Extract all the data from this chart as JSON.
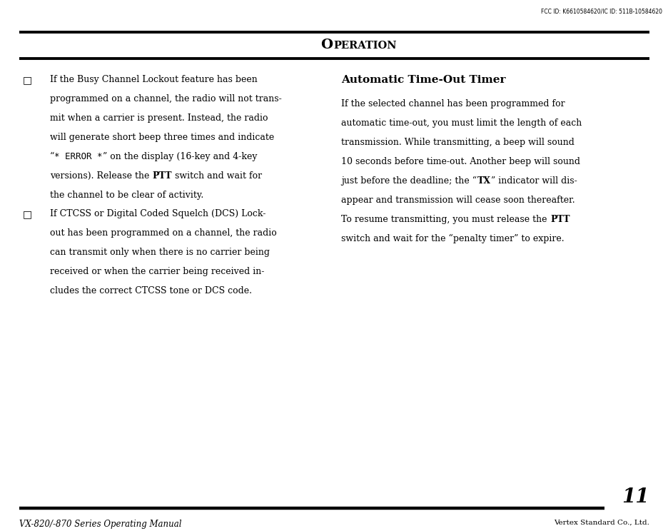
{
  "bg_color": "#ffffff",
  "text_color": "#000000",
  "top_fcc_text": "FCC ID: K6610584620/IC ID: 511B-10584620",
  "section_header": "Automatic Time-Out Timer",
  "left_bullet1_lines": [
    "If the Busy Channel Lockout feature has been",
    "programmed on a channel, the radio will not trans-",
    "mit when a carrier is present. Instead, the radio",
    "will generate short beep three times and indicate",
    "“* ERROR *” on the display (16-key and 4-key",
    "versions). Release the PTT switch and wait for",
    "the channel to be clear of activity."
  ],
  "left_bullet2_lines": [
    "If CTCSS or Digital Coded Squelch (DCS) Lock-",
    "out has been programmed on a channel, the radio",
    "can transmit only when there is no carrier being",
    "received or when the carrier being received in-",
    "cludes the correct CTCSS tone or DCS code."
  ],
  "right_para_lines": [
    "If the selected channel has been programmed for",
    "automatic time-out, you must limit the length of each",
    "transmission. While transmitting, a beep will sound",
    "10 seconds before time-out. Another beep will sound",
    "just before the deadline; the “TX” indicator will dis-",
    "appear and transmission will cease soon thereafter.",
    "To resume transmitting, you must release the PTT",
    "switch and wait for the “penalty timer” to expire."
  ],
  "footer_left": "VX-820/-870 Series Operating Manual",
  "footer_page": "11",
  "footer_right": "Vertex Standard Co., Ltd.",
  "page_width": 9.37,
  "page_height": 7.44,
  "dpi": 100
}
